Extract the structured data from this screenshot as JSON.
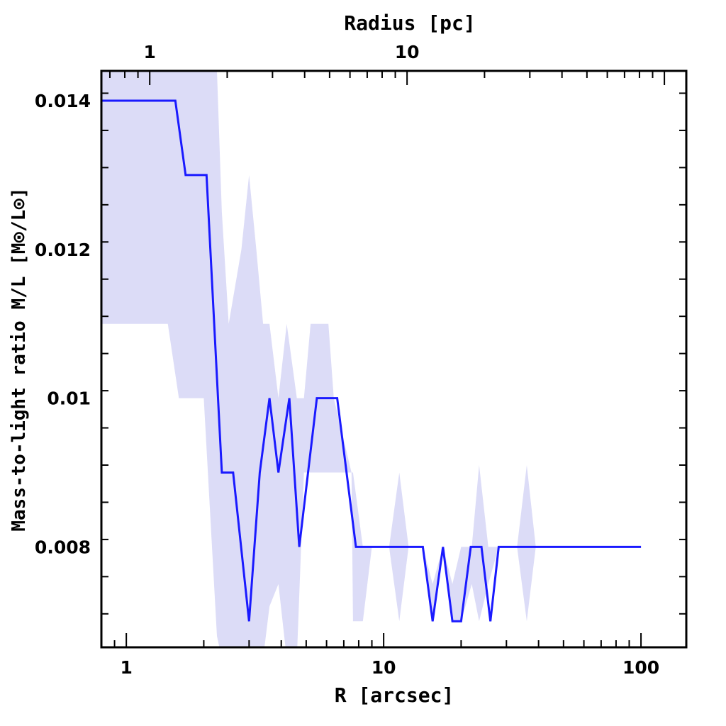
{
  "chart_data": {
    "type": "line",
    "title": "",
    "xlabel": "R [arcsec]",
    "ylabel": "Mass-to-light ratio M/L [M⊙/L⊙]",
    "top_axis_label": "Radius [pc]",
    "x_scale": "log",
    "xlim": [
      0.8,
      150
    ],
    "ylim": [
      0.00665,
      0.0144
    ],
    "x_tick_labels": [
      "1",
      "10",
      "100"
    ],
    "x_ticks": [
      1,
      10,
      100
    ],
    "y_tick_labels": [
      "0.008",
      "0.01",
      "0.012",
      "0.014"
    ],
    "y_ticks": [
      0.008,
      0.01,
      0.012,
      0.014
    ],
    "top_tick_labels": [
      "1",
      "10"
    ],
    "top_ticks_arcsec": [
      1.233,
      12.33
    ],
    "colors": {
      "line": "#1a1aff",
      "band": "#dcdcf7"
    },
    "series": [
      {
        "x": [
          0.8,
          1.55,
          1.7,
          2.05,
          2.35,
          2.6,
          3.0,
          3.3,
          3.6,
          3.9,
          4.3,
          4.7,
          5.5,
          6.6,
          7.8,
          14.2,
          15.5,
          17.0,
          18.5,
          20.0,
          21.8,
          24.0,
          26.0,
          28.0,
          100
        ],
        "y": [
          0.014,
          0.014,
          0.013,
          0.013,
          0.009,
          0.009,
          0.007,
          0.009,
          0.01,
          0.009,
          0.01,
          0.008,
          0.01,
          0.01,
          0.008,
          0.008,
          0.007,
          0.008,
          0.007,
          0.007,
          0.008,
          0.008,
          0.007,
          0.008,
          0.008
        ]
      }
    ],
    "uncertainty_band": [
      [
        0.8,
        0.011,
        0.0144
      ],
      [
        1.45,
        0.011,
        0.0144
      ],
      [
        1.6,
        0.01,
        0.0144
      ],
      [
        2.0,
        0.01,
        0.0144
      ],
      [
        2.25,
        0.0068,
        0.0144
      ],
      [
        2.35,
        0.0065,
        0.0125
      ],
      [
        2.5,
        0.0065,
        0.011
      ],
      [
        2.8,
        0.0065,
        0.012
      ],
      [
        3.0,
        0.0065,
        0.013
      ],
      [
        3.2,
        0.0065,
        0.012
      ],
      [
        3.4,
        0.0065,
        0.011
      ],
      [
        3.6,
        0.0072,
        0.011
      ],
      [
        3.9,
        0.0075,
        0.01
      ],
      [
        4.2,
        0.0065,
        0.011
      ],
      [
        4.6,
        0.0065,
        0.01
      ],
      [
        4.9,
        0.009,
        0.01
      ],
      [
        5.2,
        0.009,
        0.011
      ],
      [
        6.1,
        0.009,
        0.011
      ],
      [
        6.4,
        0.009,
        0.01
      ],
      [
        7.5,
        0.009,
        0.009
      ],
      [
        7.6,
        0.007,
        0.009
      ],
      [
        8.3,
        0.007,
        0.008
      ],
      [
        9.0,
        0.008,
        0.008
      ],
      [
        10.5,
        0.008,
        0.008
      ],
      [
        11.5,
        0.007,
        0.009
      ],
      [
        12.5,
        0.008,
        0.008
      ],
      [
        14.2,
        0.008,
        0.008
      ],
      [
        15.5,
        0.007,
        0.0075
      ],
      [
        17.0,
        0.008,
        0.008
      ],
      [
        18.5,
        0.007,
        0.0075
      ],
      [
        20.0,
        0.007,
        0.008
      ],
      [
        22.0,
        0.0075,
        0.008
      ],
      [
        23.5,
        0.007,
        0.0091
      ],
      [
        25.5,
        0.0075,
        0.008
      ],
      [
        28.0,
        0.008,
        0.008
      ],
      [
        33.0,
        0.008,
        0.008
      ],
      [
        36.0,
        0.007,
        0.0091
      ],
      [
        39.0,
        0.008,
        0.008
      ]
    ]
  }
}
